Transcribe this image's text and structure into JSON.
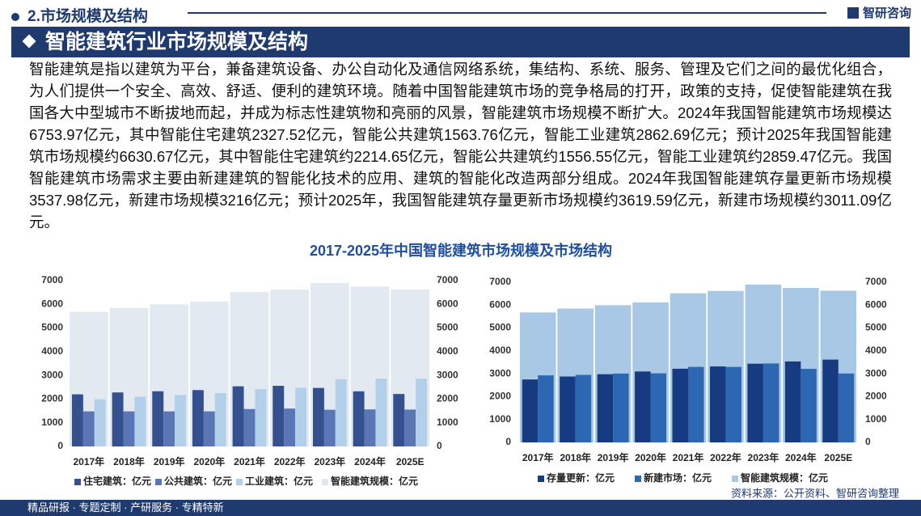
{
  "header": {
    "section": "2.市场规模及结构",
    "logo": "智研咨询",
    "title": "智能建筑行业市场规模及结构"
  },
  "paragraph": "智能建筑是指以建筑为平台，兼备建筑设备、办公自动化及通信网络系统，集结构、系统、服务、管理及它们之间的最优化组合，为人们提供一个安全、高效、舒适、便利的建筑环境。随着中国智能建筑市场的竞争格局的打开，政策的支持，促使智能建筑在我国各大中型城市不断拔地而起，并成为标志性建筑物和亮丽的风景，智能建筑市场规模不断扩大。2024年我国智能建筑市场规模达6753.97亿元，其中智能住宅建筑2327.52亿元，智能公共建筑1563.76亿元，智能工业建筑2862.69亿元；预计2025年我国智能建筑市场规模约6630.67亿元，其中智能住宅建筑约2214.65亿元，智能公共建筑约1556.55亿元，智能工业建筑约2859.47亿元。我国智能建筑市场需求主要由新建建筑的智能化技术的应用、建筑的智能化改造两部分组成。2024年我国智能建筑存量更新市场规模3537.98亿元，新建市场规模3216亿元；预计2025年，我国智能建筑存量更新市场规模约3619.59亿元，新建市场规模约3011.09亿元。",
  "chart_title": "2017-2025年中国智能建筑市场规模及市场结构",
  "source": "资料来源：公开资料、智研咨询整理",
  "footer": "精品研报 · 专题定制 · 产研服务 · 专精特新",
  "chart_data": [
    {
      "type": "bar",
      "categories": [
        "2017年",
        "2018年",
        "2019年",
        "2020年",
        "2021年",
        "2022年",
        "2023年",
        "2024年",
        "2025E"
      ],
      "series": [
        {
          "name": "住宅建筑：亿元",
          "color": "#34508f",
          "values": [
            2200,
            2280,
            2330,
            2380,
            2540,
            2560,
            2470,
            2327.52,
            2214.65
          ]
        },
        {
          "name": "公共建筑：亿元",
          "color": "#5b76b5",
          "values": [
            1480,
            1480,
            1480,
            1480,
            1580,
            1600,
            1550,
            1563.76,
            1556.55
          ]
        },
        {
          "name": "工业建筑：亿元",
          "color": "#b3d0ea",
          "values": [
            1990,
            2100,
            2170,
            2250,
            2420,
            2480,
            2840,
            2862.69,
            2859.47
          ]
        },
        {
          "name": "智能建筑规模：亿元",
          "color": "#e2e9f1",
          "values": [
            5680,
            5850,
            6000,
            6120,
            6520,
            6620,
            6900,
            6753.97,
            6630.67
          ]
        }
      ],
      "ylim": [
        0,
        7000
      ],
      "yticks": [
        0,
        1000,
        2000,
        3000,
        4000,
        5000,
        6000,
        7000
      ],
      "y2lim": [
        0,
        7000
      ],
      "y2ticks": [
        0,
        1000,
        2000,
        3000,
        4000,
        5000,
        6000,
        7000
      ]
    },
    {
      "type": "bar",
      "categories": [
        "2017年",
        "2018年",
        "2019年",
        "2020年",
        "2021年",
        "2022年",
        "2023年",
        "2024年",
        "2025E"
      ],
      "series": [
        {
          "name": "存量更新：亿元",
          "color": "#173b80",
          "values": [
            2750,
            2880,
            2980,
            3100,
            3220,
            3320,
            3440,
            3537.98,
            3619.59
          ]
        },
        {
          "name": "新建市场：亿元",
          "color": "#2e67b1",
          "values": [
            2930,
            2950,
            3010,
            3020,
            3300,
            3300,
            3450,
            3216,
            3011.09
          ]
        },
        {
          "name": "智能建筑规模：亿元",
          "color": "#a9c8e5",
          "values": [
            5680,
            5850,
            6000,
            6120,
            6520,
            6620,
            6900,
            6753.97,
            6630.67
          ]
        }
      ],
      "ylim": [
        0,
        7000
      ],
      "yticks": [
        0,
        1000,
        2000,
        3000,
        4000,
        5000,
        6000,
        7000
      ],
      "y2lim": [
        0,
        7000
      ],
      "y2ticks": [
        0,
        1000,
        2000,
        3000,
        4000,
        5000,
        6000,
        7000
      ]
    }
  ]
}
